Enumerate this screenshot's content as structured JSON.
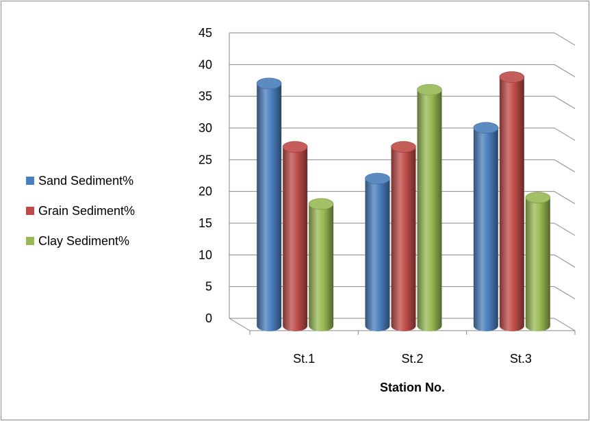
{
  "chart_data": {
    "type": "bar",
    "style": "3d-cylinder",
    "title": "",
    "xlabel": "Station No.",
    "ylabel": "",
    "categories": [
      "St.1",
      "St.2",
      "St.3"
    ],
    "ylim": [
      0,
      45
    ],
    "ytick_step": 5,
    "grid": true,
    "legend": "left",
    "series": [
      {
        "name": "Sand Sediment%",
        "values": [
          38,
          23,
          31
        ],
        "color": "#4a7ebb"
      },
      {
        "name": "Grain Sediment%",
        "values": [
          28,
          28,
          39
        ],
        "color": "#be4b48"
      },
      {
        "name": "Clay Sediment%",
        "values": [
          19,
          37,
          20
        ],
        "color": "#98b954"
      }
    ]
  }
}
